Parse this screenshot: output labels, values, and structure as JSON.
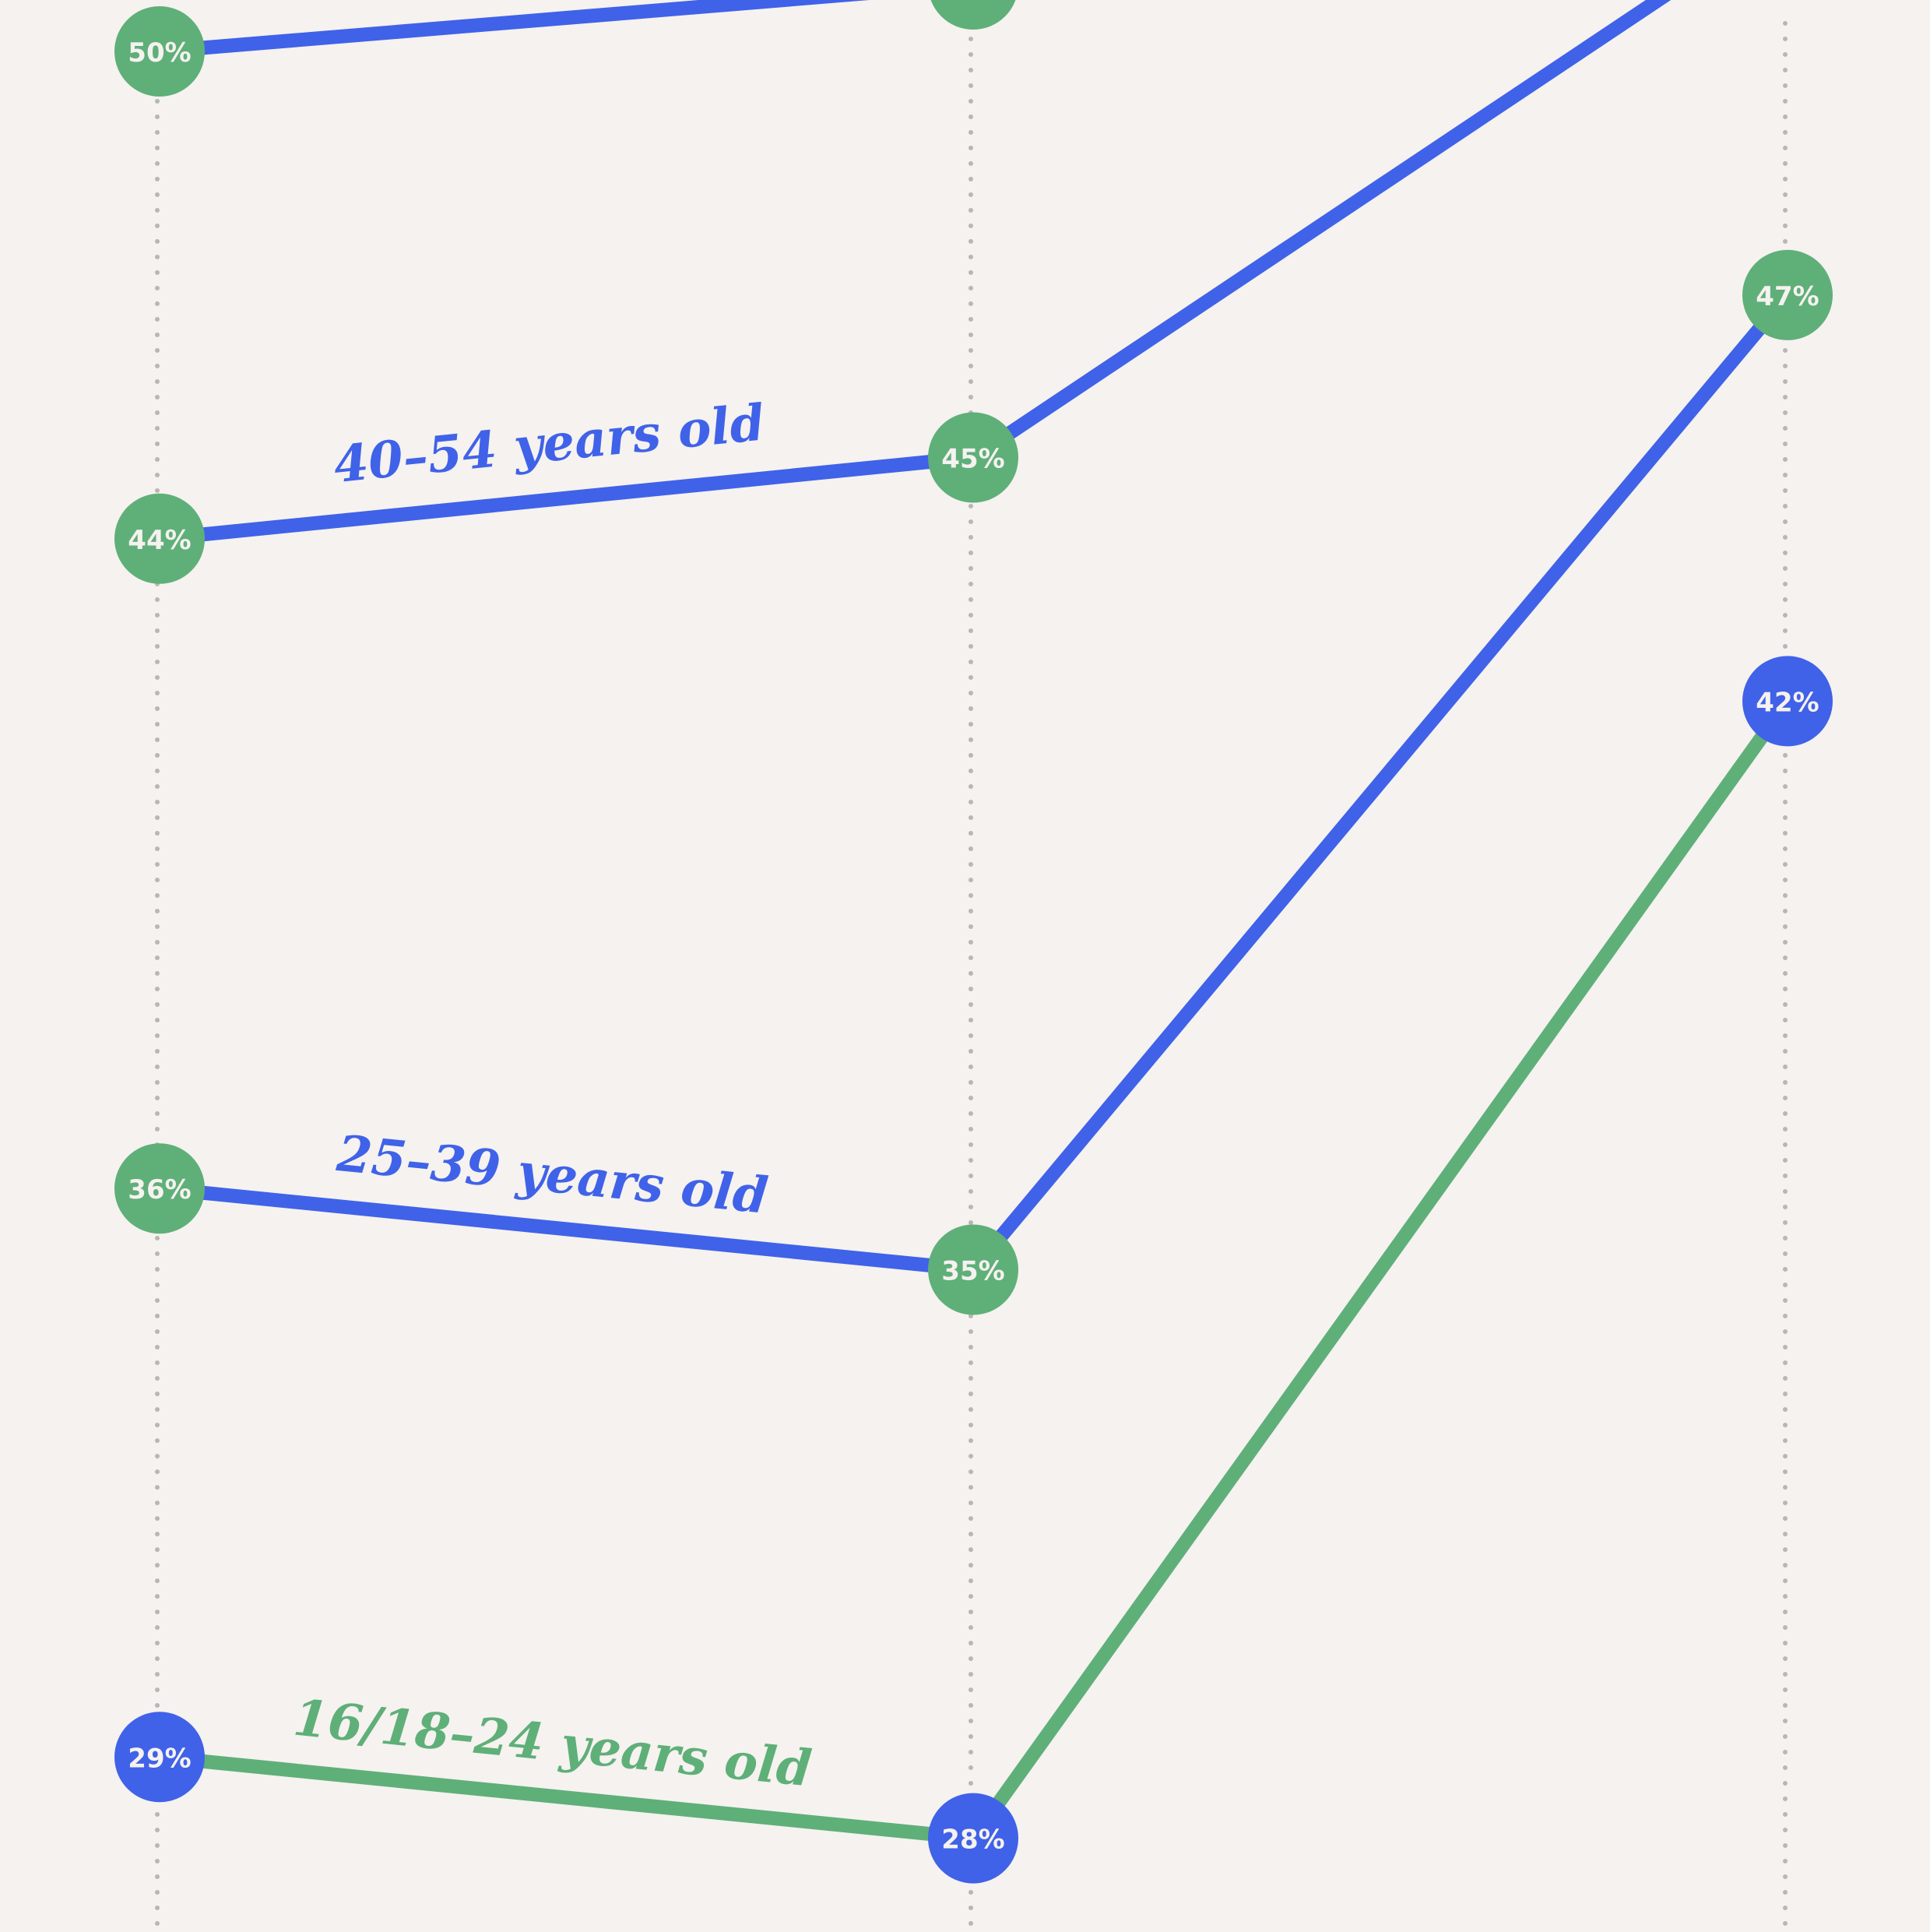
{
  "colors": {
    "background": "#f5f2ef",
    "blue": "#4062e8",
    "green": "#5faf79",
    "grid": "#b9b6b3",
    "marker_text": "#f5f2ef"
  },
  "chart_data": {
    "type": "line",
    "title": "",
    "xlabel": "",
    "ylabel": "",
    "grid": "vertical dotted lines at each x position",
    "legend": "inline labels along lines",
    "x": [
      1,
      2,
      3
    ],
    "ylim": [
      27,
      50
    ],
    "series": [
      {
        "name": "16/18–24 years old",
        "line_color": "green",
        "marker_colors": [
          "blue",
          "blue",
          "blue"
        ],
        "values": [
          29,
          28,
          42
        ],
        "labels": [
          "29%",
          "28%",
          "42%"
        ]
      },
      {
        "name": "25–39 years old",
        "line_color": "blue",
        "marker_colors": [
          "green",
          "green",
          "green"
        ],
        "values": [
          36,
          35,
          47
        ],
        "labels": [
          "36%",
          "35%",
          "47%"
        ]
      },
      {
        "name": "40–54 years old",
        "line_color": "blue",
        "marker_colors": [
          "green",
          "green"
        ],
        "values": [
          44,
          45,
          null
        ],
        "labels": [
          "44%",
          "45%",
          ""
        ]
      },
      {
        "name": "",
        "line_color": "blue",
        "marker_colors": [
          "green"
        ],
        "values": [
          50,
          null,
          null
        ],
        "labels": [
          "50%",
          "",
          ""
        ]
      }
    ]
  }
}
